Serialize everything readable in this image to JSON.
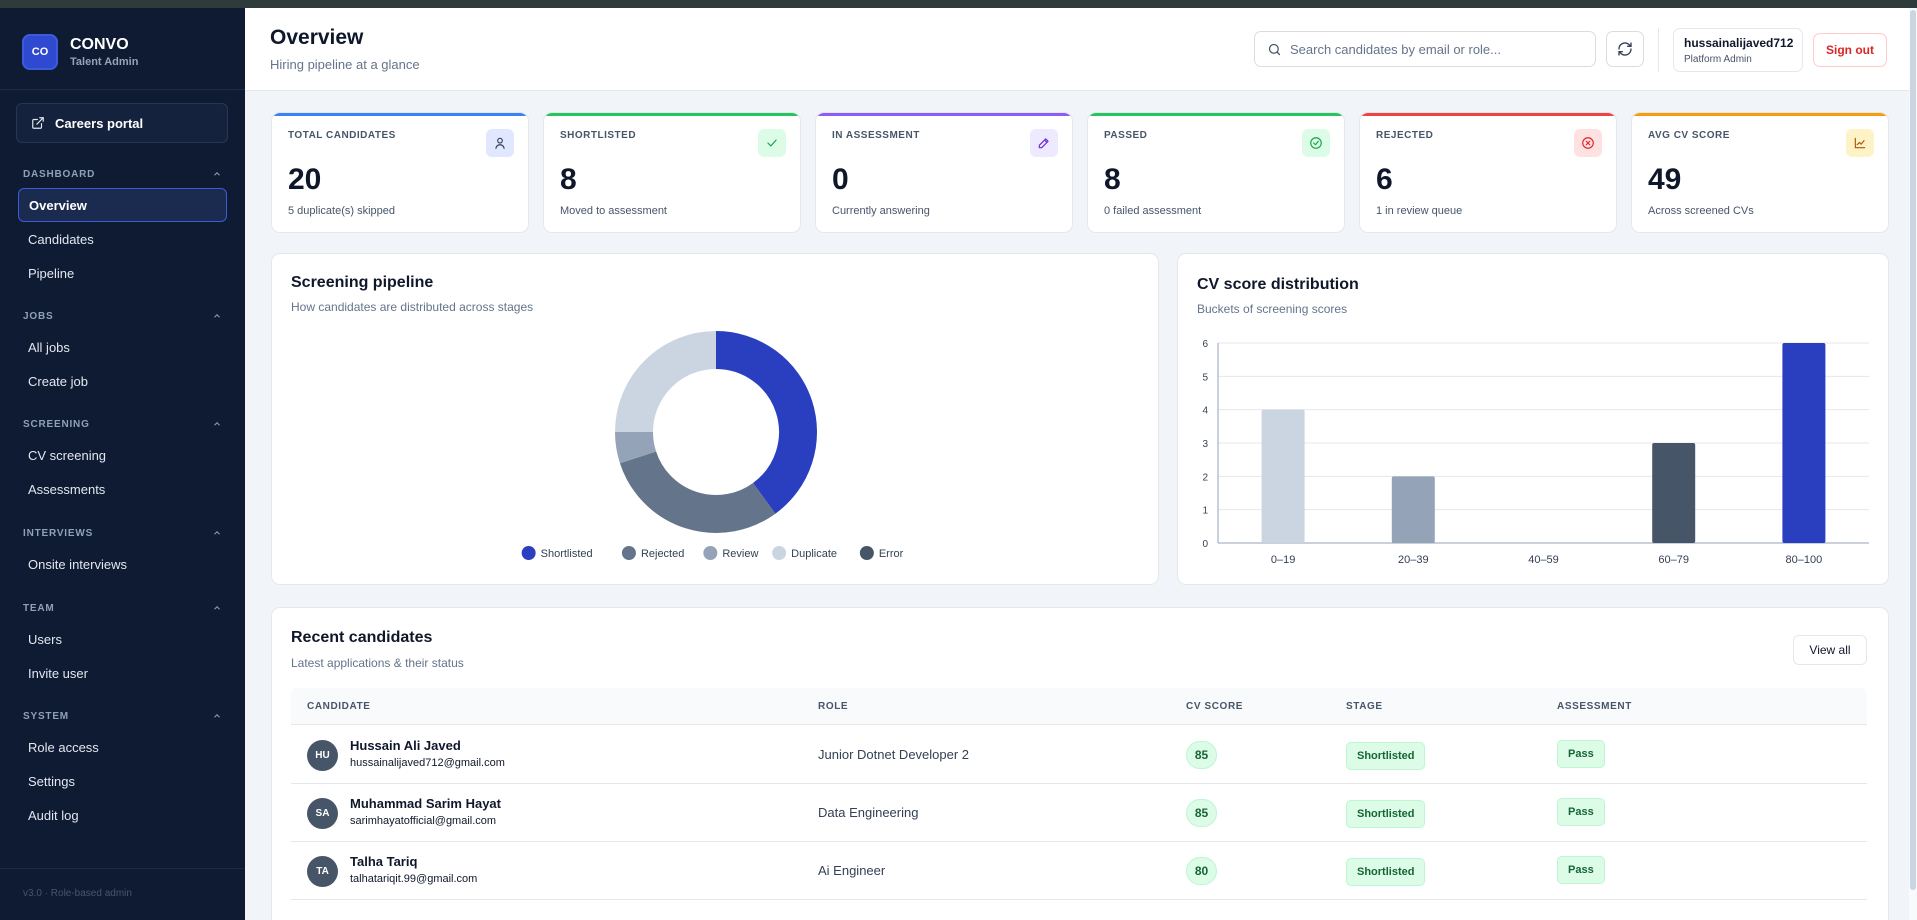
{
  "brand": {
    "logo": "CO",
    "name": "CONVO",
    "subtitle": "Talent Admin"
  },
  "careers_portal": {
    "label": "Careers portal",
    "icon": "external-link-icon"
  },
  "sidebar": {
    "sections": [
      {
        "title": "DASHBOARD",
        "items": [
          {
            "label": "Overview",
            "active": true
          },
          {
            "label": "Candidates"
          },
          {
            "label": "Pipeline"
          }
        ]
      },
      {
        "title": "JOBS",
        "items": [
          {
            "label": "All jobs"
          },
          {
            "label": "Create job"
          }
        ]
      },
      {
        "title": "SCREENING",
        "items": [
          {
            "label": "CV screening"
          },
          {
            "label": "Assessments"
          }
        ]
      },
      {
        "title": "INTERVIEWS",
        "items": [
          {
            "label": "Onsite interviews"
          }
        ]
      },
      {
        "title": "TEAM",
        "items": [
          {
            "label": "Users"
          },
          {
            "label": "Invite user"
          }
        ]
      },
      {
        "title": "SYSTEM",
        "items": [
          {
            "label": "Role access"
          },
          {
            "label": "Settings"
          },
          {
            "label": "Audit log"
          }
        ]
      }
    ],
    "footer": "v3.0 · Role-based admin"
  },
  "header": {
    "title": "Overview",
    "subtitle": "Hiring pipeline at a glance",
    "search_placeholder": "Search candidates by email or role...",
    "user_name": "hussainalijaved712",
    "user_role": "Platform Admin",
    "sign_out": "Sign out"
  },
  "stats": [
    {
      "label": "TOTAL CANDIDATES",
      "value": "20",
      "sub": "5 duplicate(s) skipped",
      "color": "#3b82f6",
      "icon": "user-icon"
    },
    {
      "label": "SHORTLISTED",
      "value": "8",
      "sub": "Moved to assessment",
      "color": "#22c55e",
      "icon": "check-icon"
    },
    {
      "label": "IN ASSESSMENT",
      "value": "0",
      "sub": "Currently answering",
      "color": "#8b5cf6",
      "icon": "pencil-icon"
    },
    {
      "label": "PASSED",
      "value": "8",
      "sub": "0 failed assessment",
      "color": "#22c55e",
      "icon": "check-circle-icon"
    },
    {
      "label": "REJECTED",
      "value": "6",
      "sub": "1 in review queue",
      "color": "#ef4444",
      "icon": "x-circle-icon"
    },
    {
      "label": "AVG CV SCORE",
      "value": "49",
      "sub": "Across screened CVs",
      "color": "#f59e0b",
      "icon": "trend-chart-icon"
    }
  ],
  "pipeline_panel": {
    "title": "Screening pipeline",
    "subtitle": "How candidates are distributed across stages"
  },
  "distribution_panel": {
    "title": "CV score distribution",
    "subtitle": "Buckets of screening scores"
  },
  "chart_data": [
    {
      "type": "pie",
      "donut": true,
      "labels": [
        "Shortlisted",
        "Rejected",
        "Review",
        "Duplicate",
        "Error"
      ],
      "values": [
        8,
        6,
        1,
        5,
        0
      ],
      "colors": [
        "#2a3fbf",
        "#64748b",
        "#94a3b8",
        "#cbd5e1",
        "#475569"
      ],
      "legend": "bottom"
    },
    {
      "type": "bar",
      "categories": [
        "0–19",
        "20–39",
        "40–59",
        "60–79",
        "80–100"
      ],
      "values": [
        4,
        2,
        0,
        3,
        6
      ],
      "colors": [
        "#cbd5e1",
        "#94a3b8",
        "#64748b",
        "#475569",
        "#2a3fbf"
      ],
      "ylim": [
        0,
        6
      ],
      "yticks": [
        0,
        1,
        2,
        3,
        4,
        5,
        6
      ],
      "grid": true
    }
  ],
  "recent": {
    "title": "Recent candidates",
    "subtitle": "Latest applications & their status",
    "view_all": "View all",
    "columns": [
      "CANDIDATE",
      "ROLE",
      "CV SCORE",
      "STAGE",
      "ASSESSMENT"
    ],
    "rows": [
      {
        "initials": "HU",
        "name": "Hussain Ali Javed",
        "email": "hussainalijaved712@gmail.com",
        "role": "Junior Dotnet Developer 2",
        "score": "85",
        "stage": "Shortlisted",
        "assessment": "Pass"
      },
      {
        "initials": "SA",
        "name": "Muhammad Sarim Hayat",
        "email": "sarimhayatofficial@gmail.com",
        "role": "Data Engineering",
        "score": "85",
        "stage": "Shortlisted",
        "assessment": "Pass"
      },
      {
        "initials": "TA",
        "name": "Talha Tariq",
        "email": "talhatariqit.99@gmail.com",
        "role": "Ai Engineer",
        "score": "80",
        "stage": "Shortlisted",
        "assessment": "Pass"
      }
    ]
  }
}
